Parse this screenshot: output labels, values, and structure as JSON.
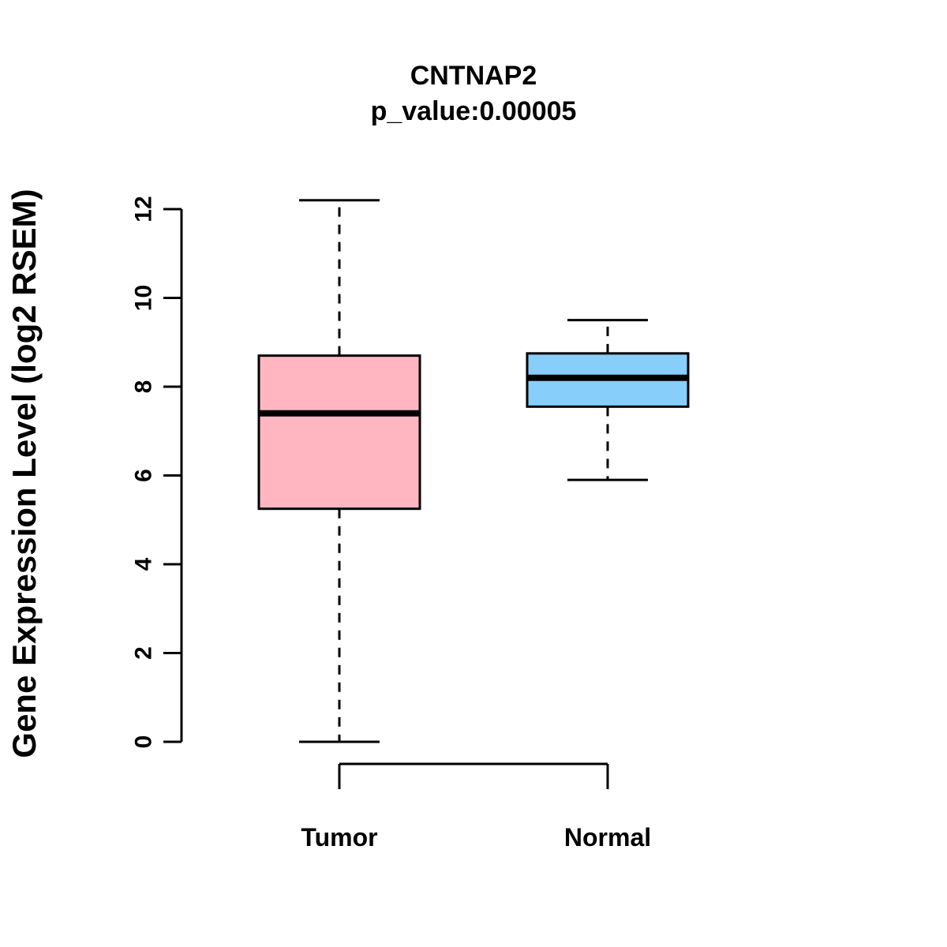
{
  "chart_data": {
    "type": "boxplot",
    "title": "CNTNAP2",
    "subtitle": "p_value:0.00005",
    "ylabel": "Gene Expression Level (log2 RSEM)",
    "xlabel": "",
    "ylim": [
      0,
      12.3
    ],
    "yticks": [
      0,
      2,
      4,
      6,
      8,
      10,
      12
    ],
    "grid": false,
    "legend": "none",
    "categories": [
      "Tumor",
      "Normal"
    ],
    "series": [
      {
        "name": "Tumor",
        "color": "#FFB6C1",
        "whisker_low": 0,
        "q1": 5.25,
        "median": 7.4,
        "q3": 8.7,
        "whisker_high": 12.2
      },
      {
        "name": "Normal",
        "color": "#87CEFA",
        "whisker_low": 5.9,
        "q1": 7.55,
        "median": 8.2,
        "q3": 8.75,
        "whisker_high": 9.5
      }
    ],
    "box_border_color": "#000000",
    "median_color": "#000000",
    "whisker_style": "dashed"
  }
}
